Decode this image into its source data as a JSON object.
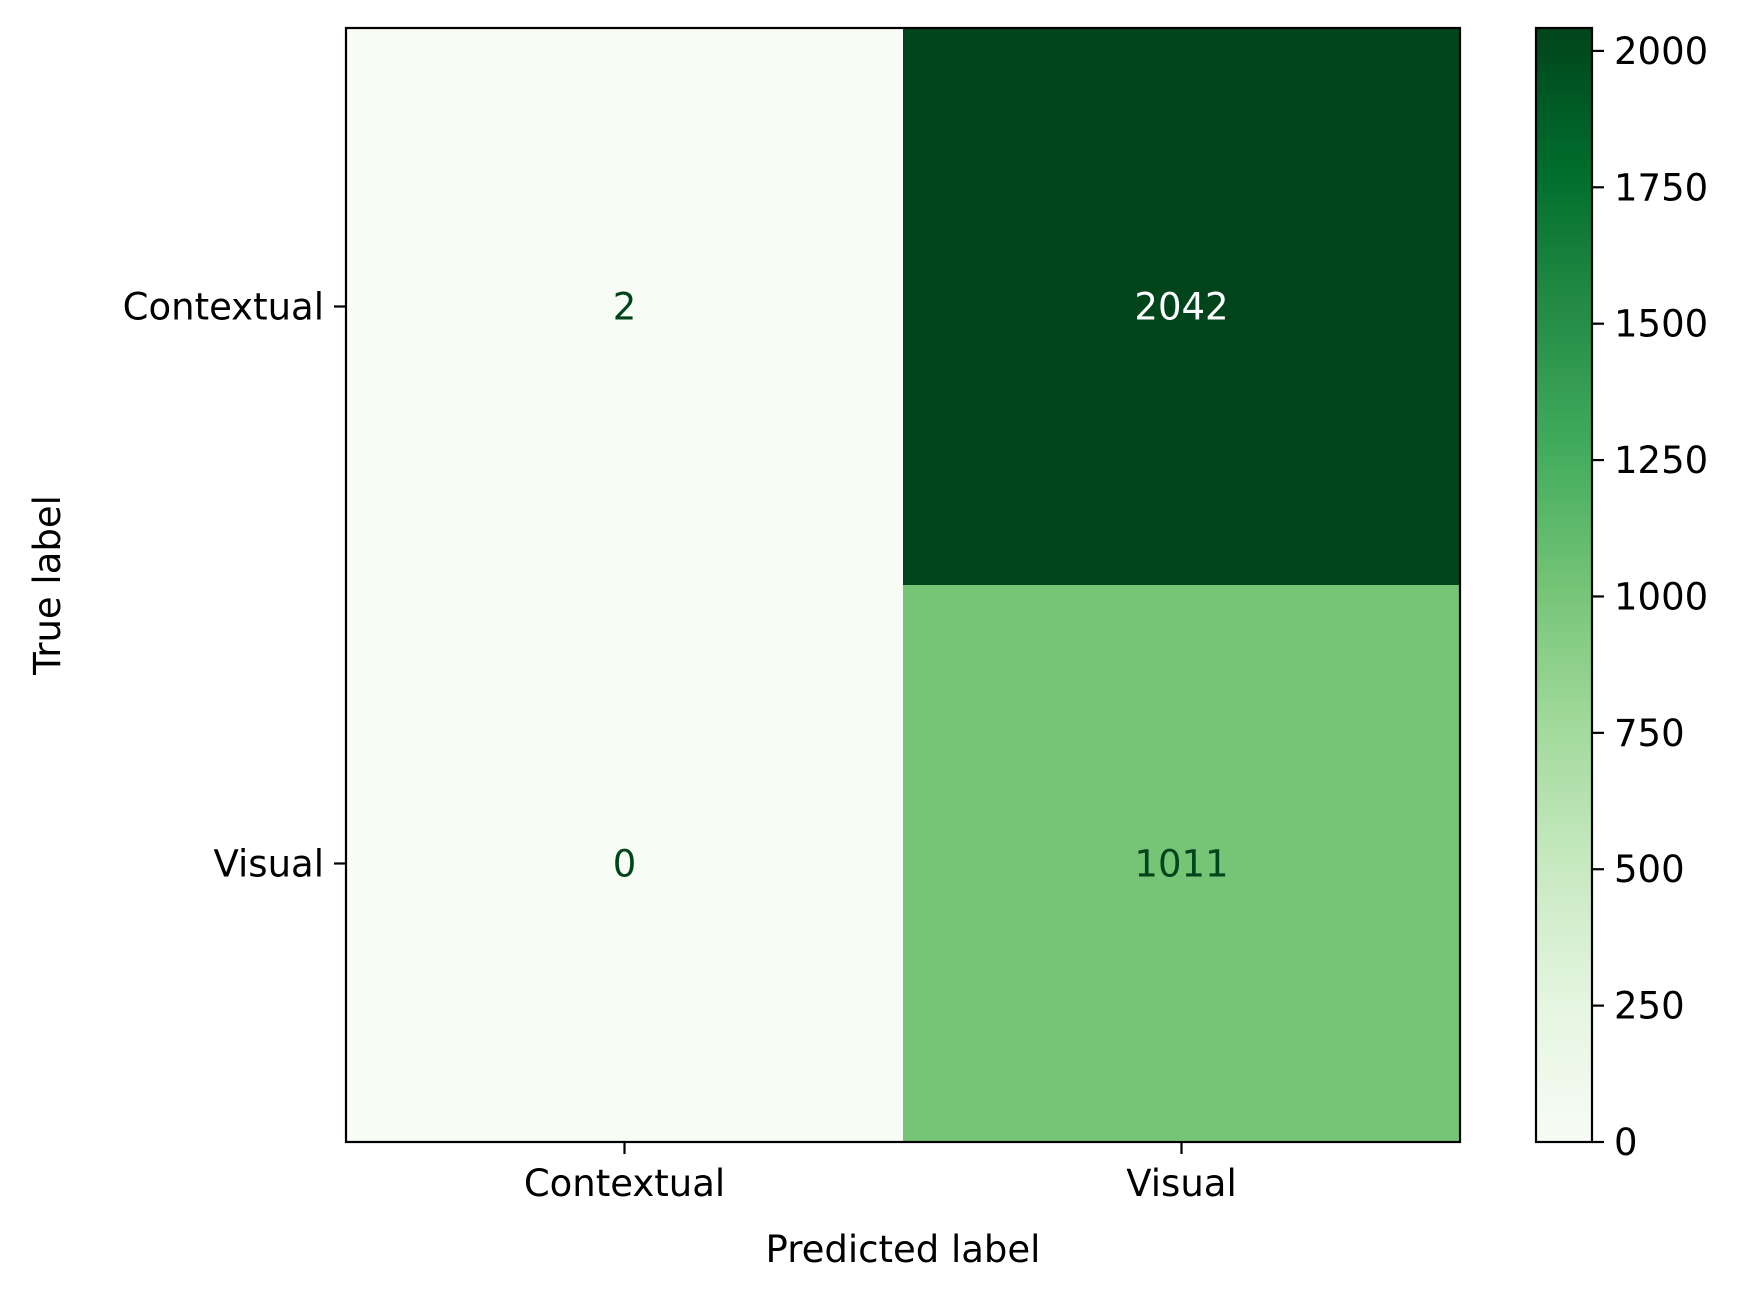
{
  "chart_data": {
    "type": "heatmap",
    "title": "",
    "xlabel": "Predicted label",
    "ylabel": "True label",
    "x_categories": [
      "Contextual",
      "Visual"
    ],
    "y_categories": [
      "Contextual",
      "Visual"
    ],
    "matrix": [
      [
        2,
        2042
      ],
      [
        0,
        1011
      ]
    ],
    "colormap": "Greens",
    "colormap_stops": [
      "#f7fcf5",
      "#e5f5e0",
      "#c7e9c0",
      "#a1d99b",
      "#74c476",
      "#41ab5d",
      "#238b45",
      "#006d2c",
      "#00441b"
    ],
    "colorbar": {
      "range": [
        0,
        2042
      ],
      "ticks": [
        0,
        250,
        500,
        750,
        1000,
        1250,
        1500,
        1750,
        2000
      ]
    },
    "text_colors": {
      "dark": "#00441b",
      "light": "#ffffff"
    }
  }
}
